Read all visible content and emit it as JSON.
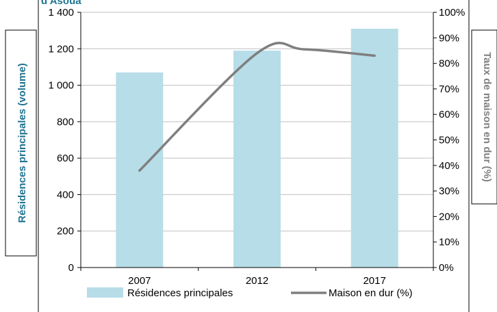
{
  "title_fragment": "d'Asoua",
  "colors": {
    "bar": "#b7dde8",
    "line": "#7f7f7f",
    "left_title": "#1f7391",
    "right_title": "#808080",
    "grid": "#bfbfbf"
  },
  "chart_data": {
    "type": "bar",
    "categories": [
      "2007",
      "2012",
      "2017"
    ],
    "series": [
      {
        "name": "Résidences principales",
        "kind": "bar",
        "axis": "left",
        "values": [
          1070,
          1190,
          1310
        ]
      },
      {
        "name": "Maison en dur (%)",
        "kind": "line",
        "axis": "right",
        "smooth": true,
        "values": [
          38,
          84,
          83
        ],
        "peak": {
          "x": "2014",
          "y": 85.5
        }
      }
    ],
    "ylabel": "Résidences principales (volume)",
    "y2label": "Taux de maison en dur (%)",
    "ylim": [
      0,
      1400
    ],
    "y2lim": [
      0,
      100
    ],
    "yticks": [
      "0",
      "200",
      "400",
      "600",
      "800",
      "1 000",
      "1 200",
      "1 400"
    ],
    "y2ticks": [
      "0%",
      "10%",
      "20%",
      "30%",
      "40%",
      "50%",
      "60%",
      "70%",
      "80%",
      "90%",
      "100%"
    ],
    "grid": true,
    "legend": "bottom"
  }
}
